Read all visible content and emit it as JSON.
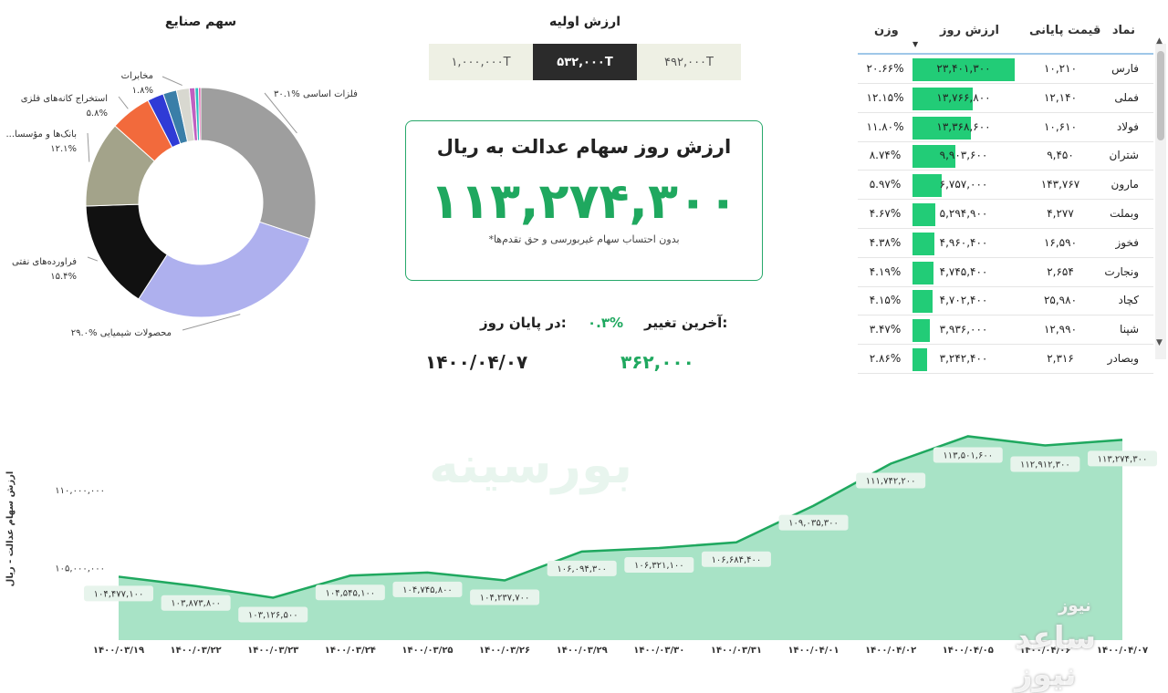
{
  "donut": {
    "title": "سهم صنایع",
    "slices": [
      {
        "name": "فلزات اساسی",
        "pct_label": "۳۰.۱%",
        "value": 30.1,
        "color": "#9e9e9e"
      },
      {
        "name": "محصولات شیمیایی",
        "pct_label": "۲۹.۰%",
        "value": 29.0,
        "color": "#aeb0ee"
      },
      {
        "name": "فراورده‌های نفتی",
        "pct_label": "۱۵.۴%",
        "value": 15.4,
        "color": "#111111"
      },
      {
        "name": "...بانک‌ها و مؤسسا",
        "pct_label": "۱۲.۱%",
        "value": 12.1,
        "color": "#a3a38a"
      },
      {
        "name": "استخراج کانه‌های فلزی",
        "pct_label": "۵.۸%",
        "value": 5.8,
        "color": "#f26a3c"
      },
      {
        "name": "",
        "pct_label": "",
        "value": 2.3,
        "color": "#2f3bd6"
      },
      {
        "name": "",
        "pct_label": "",
        "value": 1.9,
        "color": "#3a7ea8"
      },
      {
        "name": "مخابرات",
        "pct_label": "۱.۸%",
        "value": 1.8,
        "color": "#d8d8d0"
      },
      {
        "name": "",
        "pct_label": "",
        "value": 0.8,
        "color": "#c060c0"
      },
      {
        "name": "",
        "pct_label": "",
        "value": 0.5,
        "color": "#30c0c0"
      },
      {
        "name": "",
        "pct_label": "",
        "value": 0.3,
        "color": "#e040a0"
      }
    ]
  },
  "initial": {
    "title": "ارزش اولیه",
    "tabs": [
      "۱,۰۰۰,۰۰۰T",
      "۵۳۲,۰۰۰T",
      "۴۹۲,۰۰۰T"
    ],
    "active_index": 1
  },
  "card": {
    "title": "ارزش روز سهام عدالت به ریال",
    "value": "۱۱۳,۲۷۴,۳۰۰",
    "note": "*بدون احتساب سهام غیربورسی و حق تقدم‌ها"
  },
  "summary": {
    "last_change_label": "آخرین تغییر:",
    "last_change_value": "۰.۳%",
    "end_day_label": "در پایان روز:",
    "close_value": "۳۶۲,۰۰۰",
    "close_date": "۱۴۰۰/۰۴/۰۷"
  },
  "table": {
    "headers": {
      "symbol": "نماد",
      "price": "قیمت پایانی",
      "value": "ارزش روز",
      "weight": "وزن"
    },
    "rows": [
      {
        "symbol": "فارس",
        "price": "۱۰,۲۱۰",
        "value": "۲۳,۴۰۱,۳۰۰",
        "weight": "۲۰.۶۶%",
        "w": 20.66
      },
      {
        "symbol": "فملی",
        "price": "۱۲,۱۴۰",
        "value": "۱۳,۷۶۶,۸۰۰",
        "weight": "۱۲.۱۵%",
        "w": 12.15
      },
      {
        "symbol": "فولاد",
        "price": "۱۰,۶۱۰",
        "value": "۱۳,۳۶۸,۶۰۰",
        "weight": "۱۱.۸۰%",
        "w": 11.8
      },
      {
        "symbol": "شتران",
        "price": "۹,۴۵۰",
        "value": "۹,۹۰۳,۶۰۰",
        "weight": "۸.۷۴%",
        "w": 8.74
      },
      {
        "symbol": "مارون",
        "price": "۱۴۳,۷۶۷",
        "value": "۶,۷۵۷,۰۰۰",
        "weight": "۵.۹۷%",
        "w": 5.97
      },
      {
        "symbol": "وبملت",
        "price": "۴,۲۷۷",
        "value": "۵,۲۹۴,۹۰۰",
        "weight": "۴.۶۷%",
        "w": 4.67
      },
      {
        "symbol": "فخوز",
        "price": "۱۶,۵۹۰",
        "value": "۴,۹۶۰,۴۰۰",
        "weight": "۴.۳۸%",
        "w": 4.38
      },
      {
        "symbol": "ونجارت",
        "price": "۲,۶۵۴",
        "value": "۴,۷۴۵,۴۰۰",
        "weight": "۴.۱۹%",
        "w": 4.19
      },
      {
        "symbol": "کچاد",
        "price": "۲۵,۹۸۰",
        "value": "۴,۷۰۲,۴۰۰",
        "weight": "۴.۱۵%",
        "w": 4.15
      },
      {
        "symbol": "شپنا",
        "price": "۱۲,۹۹۰",
        "value": "۳,۹۳۶,۰۰۰",
        "weight": "۳.۴۷%",
        "w": 3.47
      },
      {
        "symbol": "وبصادر",
        "price": "۲,۳۱۶",
        "value": "۳,۲۴۲,۴۰۰",
        "weight": "۲.۸۶%",
        "w": 2.86
      }
    ]
  },
  "chart_data": {
    "type": "area",
    "ylabel": "ارزش سهام عدالت - ریال",
    "ytick_labels": [
      "۱۱۰,۰۰۰,۰۰۰",
      "۱۰۵,۰۰۰,۰۰۰"
    ],
    "ytick_values": [
      110000000,
      105000000
    ],
    "ylim": [
      100400000,
      114700000
    ],
    "color": "#1fa85f",
    "fill": "#9fe0c0",
    "points": [
      {
        "x": "۱۴۰۰/۰۳/۱۹",
        "y": 104477100,
        "label": "۱۰۴,۴۷۷,۱۰۰"
      },
      {
        "x": "۱۴۰۰/۰۳/۲۲",
        "y": 103873800,
        "label": "۱۰۳,۸۷۳,۸۰۰"
      },
      {
        "x": "۱۴۰۰/۰۳/۲۳",
        "y": 103126500,
        "label": "۱۰۳,۱۲۶,۵۰۰"
      },
      {
        "x": "۱۴۰۰/۰۳/۲۴",
        "y": 104545100,
        "label": "۱۰۴,۵۴۵,۱۰۰"
      },
      {
        "x": "۱۴۰۰/۰۳/۲۵",
        "y": 104745800,
        "label": "۱۰۴,۷۴۵,۸۰۰"
      },
      {
        "x": "۱۴۰۰/۰۳/۲۶",
        "y": 104237700,
        "label": "۱۰۴,۲۳۷,۷۰۰"
      },
      {
        "x": "۱۴۰۰/۰۳/۲۹",
        "y": 106094300,
        "label": "۱۰۶,۰۹۴,۳۰۰"
      },
      {
        "x": "۱۴۰۰/۰۳/۳۰",
        "y": 106321100,
        "label": "۱۰۶,۳۲۱,۱۰۰"
      },
      {
        "x": "۱۴۰۰/۰۳/۳۱",
        "y": 106684400,
        "label": "۱۰۶,۶۸۴,۴۰۰"
      },
      {
        "x": "۱۴۰۰/۰۴/۰۱",
        "y": 109035300,
        "label": "۱۰۹,۰۳۵,۳۰۰"
      },
      {
        "x": "۱۴۰۰/۰۴/۰۲",
        "y": 111742200,
        "label": "۱۱۱,۷۴۲,۲۰۰"
      },
      {
        "x": "۱۴۰۰/۰۴/۰۵",
        "y": 113501600,
        "label": "۱۱۳,۵۰۱,۶۰۰"
      },
      {
        "x": "۱۴۰۰/۰۴/۰۶",
        "y": 112912300,
        "label": "۱۱۲,۹۱۲,۳۰۰"
      },
      {
        "x": "۱۴۰۰/۰۴/۰۷",
        "y": 113274300,
        "label": "۱۱۳,۲۷۴,۳۰۰"
      }
    ]
  },
  "watermark": "بورسینه",
  "site_logo": "ساعد نیوز",
  "site_logo_sub": "نیوز"
}
